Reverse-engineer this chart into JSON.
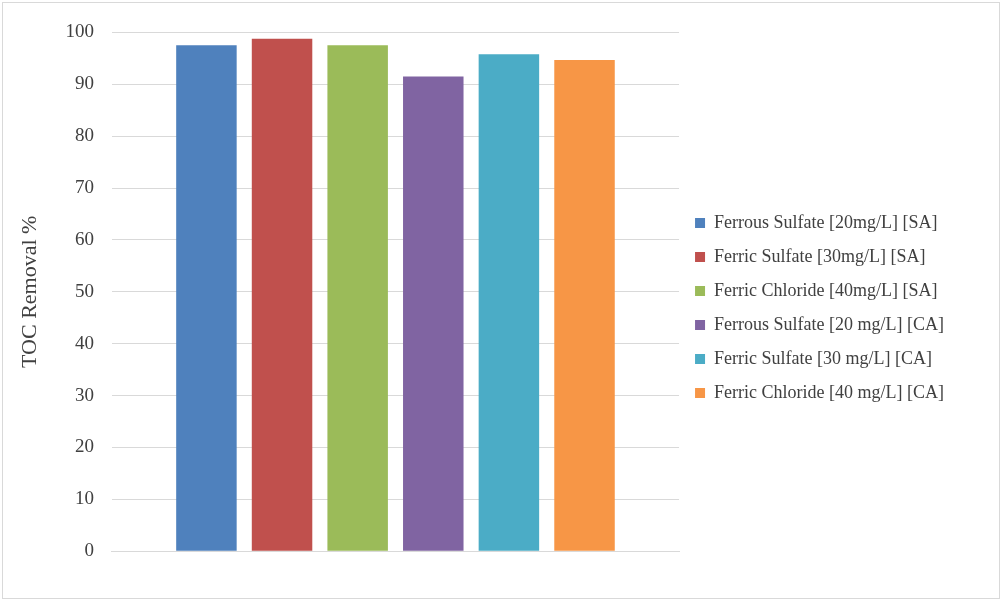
{
  "chart_data": {
    "type": "bar",
    "ylabel": "TOC Removal %",
    "categories": [
      null
    ],
    "series": [
      {
        "name": "Ferrous Sulfate [20mg/L] [SA]",
        "color": "#4f81bd",
        "values": [
          97.5
        ]
      },
      {
        "name": "Ferric Sulfate [30mg/L] [SA]",
        "color": "#c0504d",
        "values": [
          98.8
        ]
      },
      {
        "name": "Ferric Chloride [40mg/L] [SA]",
        "color": "#9bbb59",
        "values": [
          97.5
        ]
      },
      {
        "name": "Ferrous Sulfate [20 mg/L] [CA]",
        "color": "#8064a2",
        "values": [
          91.5
        ]
      },
      {
        "name": "Ferric Sulfate [30 mg/L] [CA]",
        "color": "#4bacc6",
        "values": [
          95.8
        ]
      },
      {
        "name": "Ferric Chloride [40 mg/L] [CA]",
        "color": "#f79646",
        "values": [
          94.7
        ]
      }
    ],
    "ylim": [
      0,
      100
    ],
    "yticks": [
      0,
      10,
      20,
      30,
      40,
      50,
      60,
      70,
      80,
      90,
      100
    ],
    "grid": "y",
    "legend": "right"
  }
}
